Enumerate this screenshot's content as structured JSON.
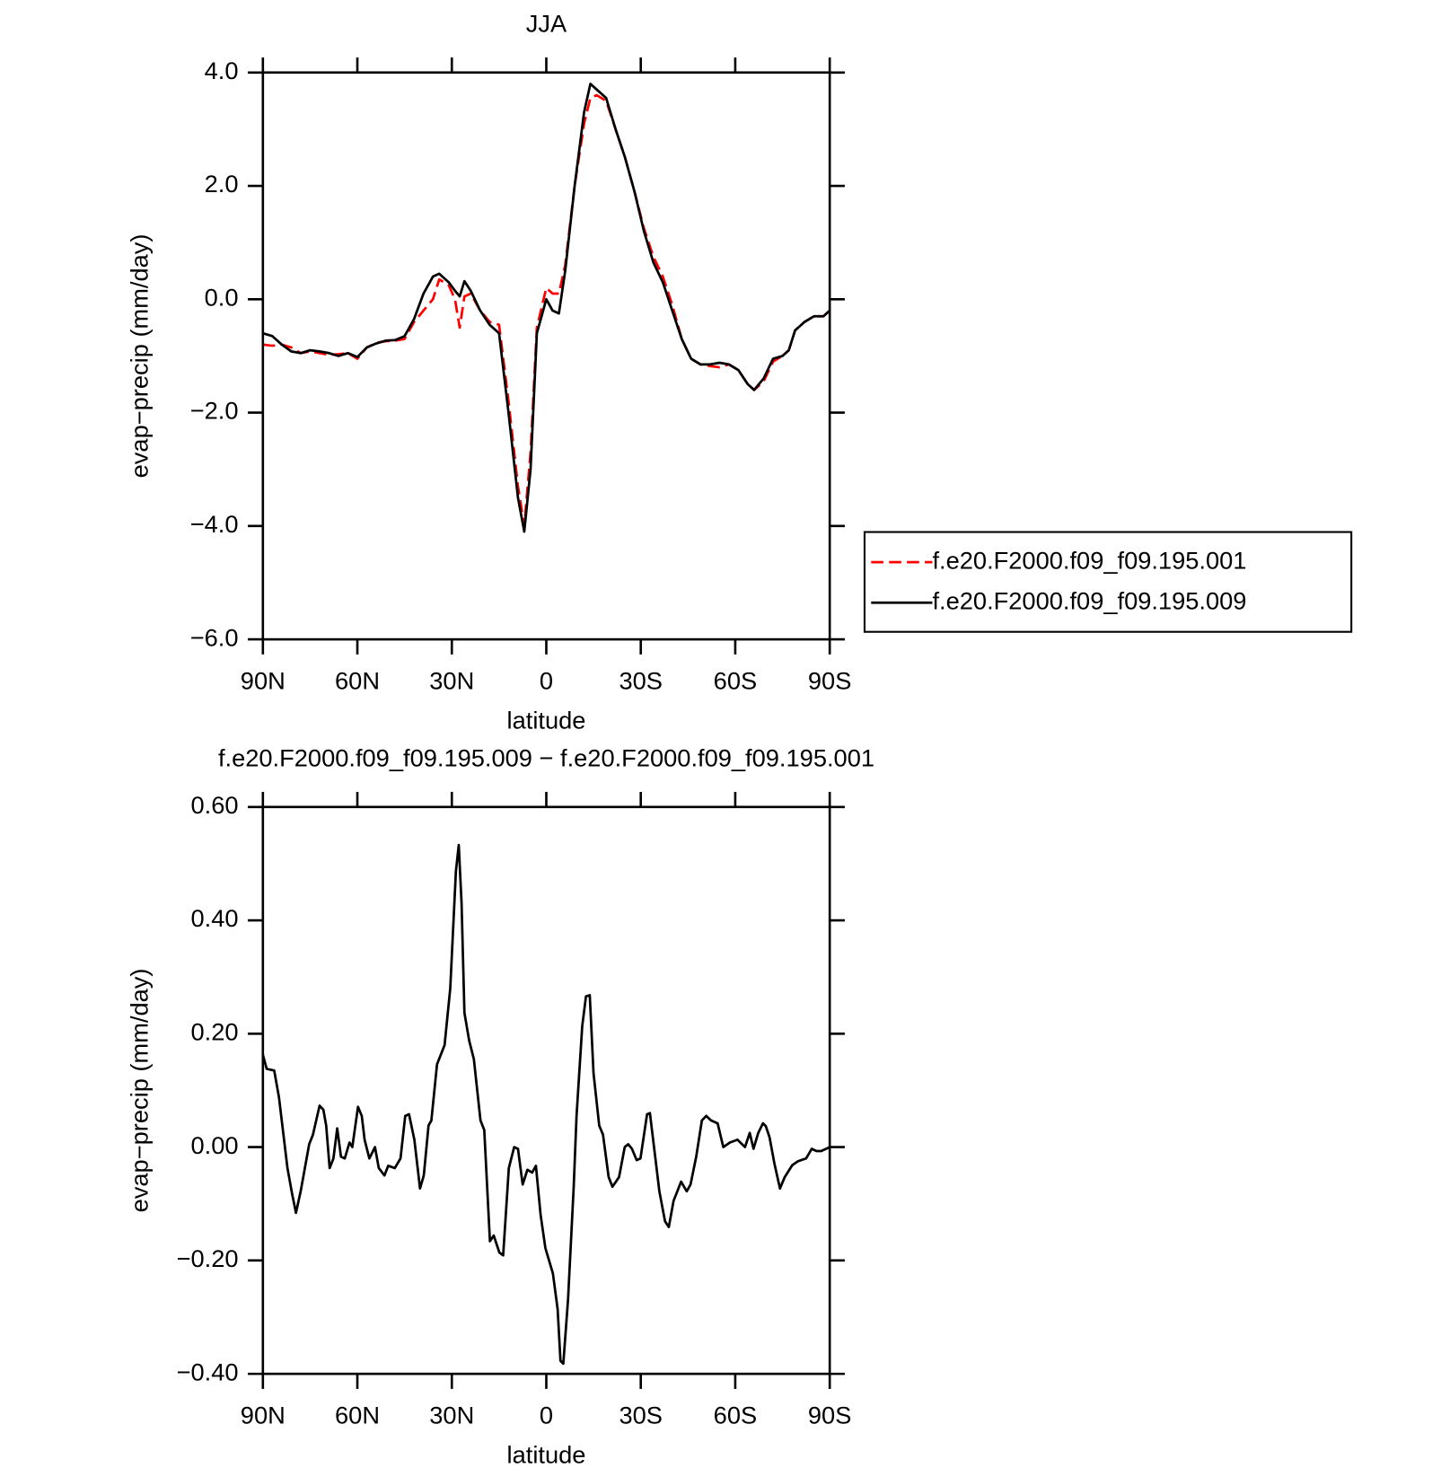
{
  "chart_data": [
    {
      "type": "line",
      "title": "JJA",
      "x_label": "latitude",
      "y_label": "evap−precip (mm/day)",
      "xlim": [
        90,
        -90
      ],
      "xticks": [
        {
          "value": 90,
          "label": "90N"
        },
        {
          "value": 60,
          "label": "60N"
        },
        {
          "value": 30,
          "label": "30N"
        },
        0,
        {
          "value": -30,
          "label": "30S"
        },
        {
          "value": -60,
          "label": "60S"
        },
        {
          "value": -90,
          "label": "90S"
        }
      ],
      "ylim": [
        -6,
        4
      ],
      "yticks": [
        {
          "value": 4,
          "label": "4.0"
        },
        {
          "value": 2,
          "label": "2.0"
        },
        {
          "value": 0,
          "label": "0.0"
        },
        {
          "value": -2,
          "label": "−2.0"
        },
        {
          "value": -4,
          "label": "−4.0"
        },
        {
          "value": -6,
          "label": "−6.0"
        }
      ],
      "legend": "right",
      "x": [
        90,
        87,
        84,
        81,
        78,
        75,
        72,
        69,
        66,
        63,
        60,
        57,
        54,
        51,
        48,
        45,
        42,
        39,
        36,
        34,
        31,
        29,
        27.5,
        26,
        24,
        21,
        18,
        15,
        12,
        9,
        7,
        5,
        3,
        0,
        -2,
        -4,
        -6,
        -9,
        -12,
        -14,
        -16,
        -19,
        -22,
        -25,
        -28,
        -31,
        -34,
        -37,
        -40,
        -43,
        -46,
        -49,
        -52,
        -55,
        -58,
        -61,
        -64,
        -66,
        -69,
        -72,
        -75,
        -77,
        -79,
        -82,
        -85,
        -88,
        -90
      ],
      "series": [
        {
          "name": "f.e20.F2000.f09_f09.195.001",
          "color": "#ff0000",
          "line_style": "dashed",
          "values": [
            -0.8,
            -0.82,
            -0.8,
            -0.85,
            -0.95,
            -0.92,
            -0.95,
            -0.98,
            -0.97,
            -0.95,
            -1.05,
            -0.85,
            -0.77,
            -0.74,
            -0.73,
            -0.7,
            -0.4,
            -0.2,
            0.0,
            0.35,
            0.25,
            0.0,
            -0.5,
            0.05,
            0.1,
            -0.2,
            -0.4,
            -0.45,
            -1.8,
            -3.3,
            -4.0,
            -2.7,
            -0.5,
            0.2,
            0.1,
            0.1,
            0.6,
            2.0,
            3.1,
            3.55,
            3.6,
            3.5,
            3.0,
            2.5,
            1.9,
            1.25,
            0.75,
            0.4,
            -0.1,
            -0.7,
            -1.05,
            -1.15,
            -1.18,
            -1.2,
            -1.15,
            -1.25,
            -1.5,
            -1.6,
            -1.45,
            -1.1,
            -1.0,
            -0.9,
            -0.55,
            -0.4,
            -0.3,
            -0.3,
            -0.2
          ]
        },
        {
          "name": "f.e20.F2000.f09_f09.195.009",
          "color": "#000000",
          "line_style": "solid",
          "values": [
            -0.6,
            -0.65,
            -0.8,
            -0.92,
            -0.95,
            -0.9,
            -0.92,
            -0.95,
            -1.0,
            -0.95,
            -1.02,
            -0.85,
            -0.78,
            -0.73,
            -0.72,
            -0.65,
            -0.35,
            0.1,
            0.4,
            0.45,
            0.3,
            0.15,
            0.05,
            0.32,
            0.15,
            -0.2,
            -0.45,
            -0.6,
            -2.0,
            -3.5,
            -4.1,
            -3.0,
            -0.6,
            0.0,
            -0.2,
            -0.25,
            0.5,
            2.0,
            3.3,
            3.8,
            3.7,
            3.55,
            3.0,
            2.5,
            1.9,
            1.2,
            0.65,
            0.3,
            -0.2,
            -0.7,
            -1.05,
            -1.15,
            -1.15,
            -1.12,
            -1.15,
            -1.25,
            -1.5,
            -1.6,
            -1.4,
            -1.05,
            -1.0,
            -0.9,
            -0.55,
            -0.4,
            -0.3,
            -0.3,
            -0.2
          ]
        }
      ]
    },
    {
      "type": "line",
      "title": "f.e20.F2000.f09_f09.195.009 − f.e20.F2000.f09_f09.195.001",
      "x_label": "latitude",
      "y_label": "evap−precip (mm/day)",
      "xlim": [
        90,
        -90
      ],
      "xticks": [
        {
          "value": 90,
          "label": "90N"
        },
        {
          "value": 60,
          "label": "60N"
        },
        {
          "value": 30,
          "label": "30N"
        },
        0,
        {
          "value": -30,
          "label": "30S"
        },
        {
          "value": -60,
          "label": "60S"
        },
        {
          "value": -90,
          "label": "90S"
        }
      ],
      "ylim": [
        -0.4,
        0.6
      ],
      "yticks": [
        {
          "value": 0.6,
          "label": "0.60"
        },
        {
          "value": 0.4,
          "label": "0.40"
        },
        {
          "value": 0.2,
          "label": "0.20"
        },
        {
          "value": 0,
          "label": "0.00"
        },
        {
          "value": -0.2,
          "label": "−0.20"
        },
        {
          "value": -0.4,
          "label": "−0.40"
        }
      ],
      "x": [
        90.0,
        88.8,
        86.4,
        84.9,
        82.2,
        80.7,
        79.5,
        78.0,
        75.3,
        74.1,
        72.0,
        70.8,
        69.9,
        68.8,
        67.6,
        66.4,
        65.2,
        64.0,
        62.5,
        61.6,
        59.8,
        58.6,
        57.7,
        56.2,
        54.4,
        53.2,
        51.4,
        50.2,
        48.1,
        46.3,
        44.8,
        43.6,
        41.9,
        40.1,
        38.9,
        37.4,
        36.5,
        34.7,
        32.3,
        30.5,
        28.7,
        27.8,
        26.9,
        26.0,
        24.5,
        23.0,
        20.9,
        19.7,
        17.9,
        16.7,
        14.9,
        13.7,
        11.9,
        10.2,
        9.0,
        7.5,
        6.0,
        4.5,
        3.3,
        1.8,
        0.3,
        -2.1,
        -3.6,
        -4.5,
        -5.4,
        -6.9,
        -8.7,
        -9.6,
        -11.4,
        -12.6,
        -13.8,
        -15.0,
        -16.8,
        -18.0,
        -19.8,
        -21.0,
        -23.1,
        -24.9,
        -26.0,
        -27.2,
        -28.7,
        -29.9,
        -32.0,
        -32.9,
        -34.1,
        -35.9,
        -37.7,
        -38.9,
        -40.4,
        -42.8,
        -44.6,
        -45.8,
        -47.6,
        -49.4,
        -50.8,
        -52.3,
        -54.4,
        -56.2,
        -58.3,
        -60.7,
        -63.1,
        -64.6,
        -65.8,
        -67.3,
        -68.8,
        -69.7,
        -70.9,
        -72.4,
        -74.2,
        -75.7,
        -78.1,
        -79.9,
        -82.5,
        -84.3,
        -85.8,
        -87.3,
        -90.0
      ],
      "series": [
        {
          "color": "#000000",
          "line_style": "solid",
          "values": [
            0.163,
            0.138,
            0.135,
            0.088,
            -0.037,
            -0.083,
            -0.116,
            -0.078,
            0.005,
            0.022,
            0.073,
            0.066,
            0.038,
            -0.037,
            -0.02,
            0.033,
            -0.017,
            -0.02,
            0.008,
            0.0,
            0.071,
            0.055,
            0.013,
            -0.02,
            0.0,
            -0.037,
            -0.05,
            -0.033,
            -0.037,
            -0.02,
            0.055,
            0.058,
            0.013,
            -0.073,
            -0.05,
            0.038,
            0.047,
            0.146,
            0.18,
            0.28,
            0.487,
            0.533,
            0.429,
            0.237,
            0.188,
            0.155,
            0.047,
            0.03,
            -0.166,
            -0.156,
            -0.186,
            -0.191,
            -0.037,
            0.0,
            -0.003,
            -0.066,
            -0.04,
            -0.045,
            -0.033,
            -0.12,
            -0.178,
            -0.223,
            -0.286,
            -0.377,
            -0.382,
            -0.269,
            -0.07,
            0.055,
            0.213,
            0.266,
            0.268,
            0.13,
            0.038,
            0.022,
            -0.053,
            -0.07,
            -0.053,
            0.0,
            0.005,
            -0.003,
            -0.023,
            -0.02,
            0.058,
            0.06,
            0.005,
            -0.078,
            -0.131,
            -0.141,
            -0.095,
            -0.061,
            -0.078,
            -0.066,
            -0.017,
            0.047,
            0.055,
            0.047,
            0.042,
            0.0,
            0.008,
            0.013,
            0.0,
            0.025,
            -0.003,
            0.025,
            0.042,
            0.037,
            0.017,
            -0.028,
            -0.073,
            -0.053,
            -0.032,
            -0.025,
            -0.02,
            -0.003,
            -0.007,
            -0.007,
            0.0
          ]
        }
      ]
    }
  ]
}
